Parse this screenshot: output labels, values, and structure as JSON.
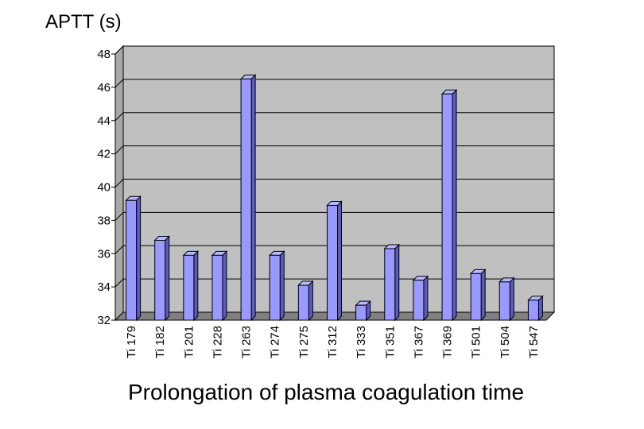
{
  "chart_data": {
    "type": "bar",
    "ylabel": "APTT (s)",
    "xlabel": "Prolongation of plasma coagulation time",
    "title": "",
    "ylim": [
      32,
      48
    ],
    "yticks": [
      32,
      34,
      36,
      38,
      40,
      42,
      44,
      46,
      48
    ],
    "grid": true,
    "style": "3d",
    "colors": {
      "bar": "#9999ff",
      "wall": "#c0c0c0",
      "floor": "#808080"
    },
    "categories": [
      "Ti 179",
      "Ti 182",
      "Ti 201",
      "Ti 228",
      "Ti 263",
      "Ti 274",
      "Ti 275",
      "Ti 312",
      "Ti 333",
      "Ti 351",
      "Ti 367",
      "Ti 369",
      "Ti 501",
      "Ti 504",
      "Ti 547"
    ],
    "values": [
      39.2,
      36.8,
      35.9,
      35.9,
      46.5,
      35.9,
      34.1,
      38.9,
      32.9,
      36.3,
      34.4,
      45.6,
      34.8,
      34.3,
      33.2
    ]
  }
}
